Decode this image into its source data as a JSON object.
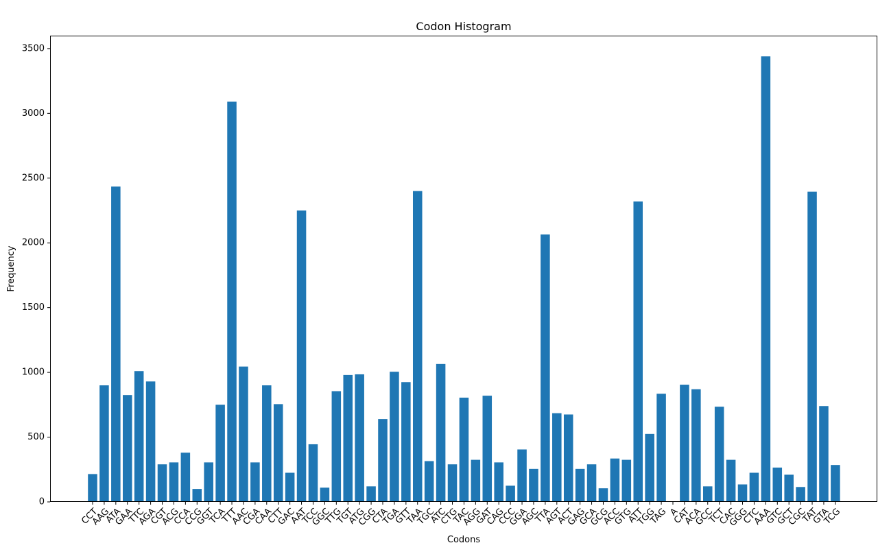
{
  "chart_data": {
    "type": "bar",
    "title": "Codon Histogram",
    "xlabel": "Codons",
    "ylabel": "Frequency",
    "ylim": [
      0,
      3600
    ],
    "yticks": [
      0,
      500,
      1000,
      1500,
      2000,
      2500,
      3000,
      3500
    ],
    "grid": false,
    "bar_color": "#1f77b4",
    "categories": [
      "CCT",
      "AAG",
      "ATA",
      "GAA",
      "TTC",
      "AGA",
      "CGT",
      "ACG",
      "CCA",
      "CCG",
      "GGT",
      "TCA",
      "TTT",
      "AAC",
      "CGA",
      "CAA",
      "CTT",
      "GAC",
      "AAT",
      "TCC",
      "GGC",
      "TTG",
      "TGT",
      "ATG",
      "CGG",
      "CTA",
      "TGA",
      "GTT",
      "TAA",
      "TGC",
      "ATC",
      "CTG",
      "TAC",
      "AGG",
      "GAT",
      "CAG",
      "CCC",
      "GGA",
      "AGC",
      "TTA",
      "AGT",
      "ACT",
      "GAG",
      "GCA",
      "GCG",
      "ACC",
      "GTG",
      "ATT",
      "TGG",
      "TAG",
      "A",
      "CAT",
      "ACA",
      "GCC",
      "TCT",
      "CAC",
      "GGG",
      "CTC",
      "AAA",
      "GTC",
      "GCT",
      "CGC",
      "TAT",
      "GTA",
      "TCG"
    ],
    "values": [
      215,
      900,
      2435,
      825,
      1010,
      930,
      290,
      305,
      380,
      100,
      305,
      750,
      3090,
      1045,
      305,
      900,
      755,
      225,
      2250,
      445,
      110,
      855,
      980,
      985,
      120,
      640,
      1005,
      925,
      2400,
      315,
      1065,
      290,
      805,
      325,
      820,
      305,
      125,
      405,
      255,
      2065,
      685,
      675,
      255,
      290,
      105,
      335,
      325,
      2320,
      525,
      835,
      0,
      905,
      870,
      120,
      735,
      325,
      135,
      225,
      3440,
      265,
      210,
      115,
      2395,
      740,
      285
    ]
  }
}
